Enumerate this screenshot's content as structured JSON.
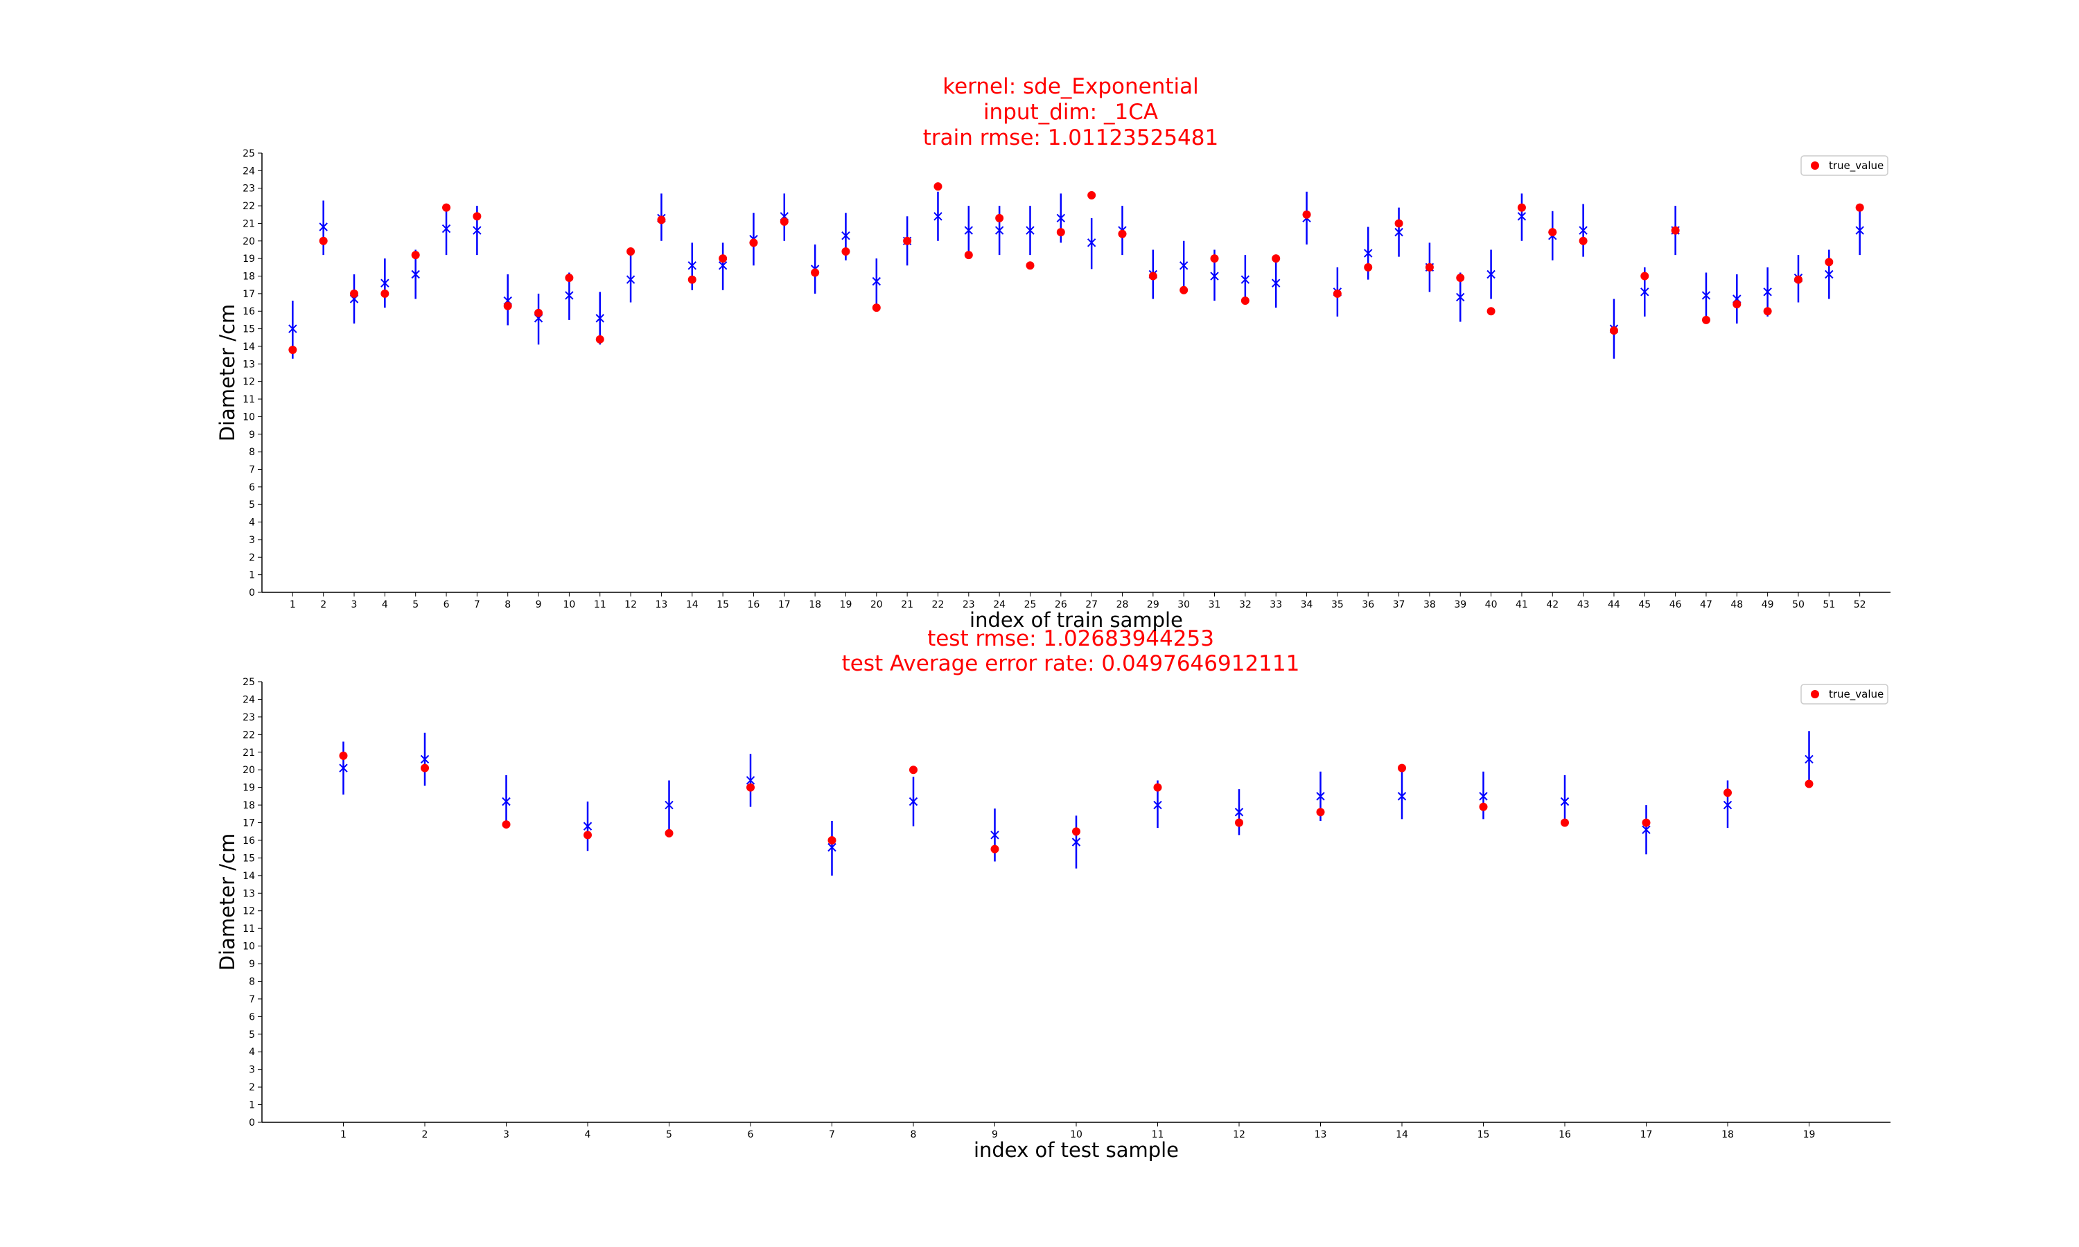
{
  "figure": {
    "title_lines": [
      "kernel: sde_Exponential",
      "input_dim: _1CA",
      "train rmse: 1.01123525481"
    ],
    "test_title_lines": [
      "test rmse: 1.02683944253",
      "test Average error rate: 0.0497646912111"
    ]
  },
  "colors": {
    "true_value": "#ff0000",
    "prediction": "#0000ff",
    "title": "#ff0000"
  },
  "chart_data": [
    {
      "type": "scatter",
      "name": "train",
      "xlabel": "index of train sample",
      "ylabel": "Diameter /cm",
      "ylim": [
        0,
        25
      ],
      "yticks": [
        0,
        1,
        2,
        3,
        4,
        5,
        6,
        7,
        8,
        9,
        10,
        11,
        12,
        13,
        14,
        15,
        16,
        17,
        18,
        19,
        20,
        21,
        22,
        23,
        24,
        25
      ],
      "x": [
        1,
        2,
        3,
        4,
        5,
        6,
        7,
        8,
        9,
        10,
        11,
        12,
        13,
        14,
        15,
        16,
        17,
        18,
        19,
        20,
        21,
        22,
        23,
        24,
        25,
        26,
        27,
        28,
        29,
        30,
        31,
        32,
        33,
        34,
        35,
        36,
        37,
        38,
        39,
        40,
        41,
        42,
        43,
        44,
        45,
        46,
        47,
        48,
        49,
        50,
        51,
        52
      ],
      "xtick_labels": [
        "1",
        "2",
        "3",
        "4",
        "5",
        "6",
        "7",
        "8",
        "9",
        "10",
        "11",
        "12",
        "13",
        "14",
        "15",
        "16",
        "17",
        "18",
        "19",
        "20",
        "21",
        "22",
        "23",
        "24",
        "25",
        "26",
        "27",
        "28",
        "29",
        "30",
        "31",
        "32",
        "33",
        "34",
        "35",
        "36",
        "37",
        "38",
        "39",
        "40",
        "41",
        "42",
        "43",
        "44",
        "45",
        "46",
        "47",
        "48",
        "49",
        "50",
        "51",
        "52"
      ],
      "true_value": [
        13.8,
        20.0,
        17.0,
        17.0,
        19.2,
        21.9,
        21.4,
        16.3,
        15.9,
        17.9,
        14.4,
        19.4,
        21.2,
        17.8,
        19.0,
        19.9,
        21.1,
        18.2,
        19.4,
        16.2,
        20.0,
        23.1,
        19.2,
        21.3,
        18.6,
        20.5,
        22.6,
        20.4,
        18.0,
        17.2,
        19.0,
        16.6,
        19.0,
        21.5,
        17.0,
        18.5,
        21.0,
        18.5,
        17.9,
        16.0,
        21.9,
        20.5,
        20.0,
        14.9,
        18.0,
        20.6,
        15.5,
        16.4,
        16.0,
        17.8,
        18.8,
        21.9
      ],
      "prediction": [
        15.0,
        20.8,
        16.7,
        17.6,
        18.1,
        20.7,
        20.6,
        16.6,
        15.6,
        16.9,
        15.6,
        17.8,
        21.3,
        18.6,
        18.6,
        20.1,
        21.4,
        18.4,
        20.3,
        17.7,
        20.0,
        21.4,
        20.6,
        20.6,
        20.6,
        21.3,
        19.9,
        20.6,
        18.1,
        18.6,
        18.0,
        17.8,
        17.6,
        21.3,
        17.1,
        19.3,
        20.5,
        18.5,
        16.8,
        18.1,
        21.4,
        20.3,
        20.6,
        15.0,
        17.1,
        20.6,
        16.9,
        16.7,
        17.1,
        17.9,
        18.1,
        20.6
      ],
      "lower": [
        13.3,
        19.2,
        15.3,
        16.2,
        16.7,
        19.2,
        19.2,
        15.2,
        14.1,
        15.5,
        14.1,
        16.5,
        20.0,
        17.2,
        17.2,
        18.6,
        20.0,
        17.0,
        18.9,
        16.3,
        18.6,
        20.0,
        19.2,
        19.2,
        19.2,
        19.9,
        18.4,
        19.2,
        16.7,
        17.2,
        16.6,
        16.4,
        16.2,
        19.8,
        15.7,
        17.8,
        19.1,
        17.1,
        15.4,
        16.7,
        20.0,
        18.9,
        19.1,
        13.3,
        15.7,
        19.2,
        15.5,
        15.3,
        15.7,
        16.5,
        16.7,
        19.2
      ],
      "upper": [
        16.6,
        22.3,
        18.1,
        19.0,
        19.5,
        22.1,
        22.0,
        18.1,
        17.0,
        18.2,
        17.1,
        19.2,
        22.7,
        19.9,
        19.9,
        21.6,
        22.7,
        19.8,
        21.6,
        19.0,
        21.4,
        22.8,
        22.0,
        22.0,
        22.0,
        22.7,
        21.3,
        22.0,
        19.5,
        20.0,
        19.5,
        19.2,
        19.0,
        22.8,
        18.5,
        20.8,
        21.9,
        19.9,
        18.2,
        19.5,
        22.7,
        21.7,
        22.1,
        16.7,
        18.5,
        22.0,
        18.2,
        18.1,
        18.5,
        19.2,
        19.5,
        22.0
      ],
      "legend": [
        "true_value"
      ],
      "legend_position": "top-right",
      "grid": false
    },
    {
      "type": "scatter",
      "name": "test",
      "xlabel": "index of test sample",
      "ylabel": "Diameter /cm",
      "ylim": [
        0,
        25
      ],
      "yticks": [
        0,
        1,
        2,
        3,
        4,
        5,
        6,
        7,
        8,
        9,
        10,
        11,
        12,
        13,
        14,
        15,
        16,
        17,
        18,
        19,
        20,
        21,
        22,
        23,
        24,
        25
      ],
      "x": [
        1,
        2,
        3,
        4,
        5,
        6,
        7,
        8,
        9,
        10,
        11,
        12,
        13,
        14,
        15,
        16,
        17,
        18,
        19
      ],
      "xtick_labels": [
        "1",
        "2",
        "3",
        "4",
        "5",
        "6",
        "7",
        "8",
        "9",
        "10",
        "11",
        "12",
        "13",
        "14",
        "15",
        "16",
        "17",
        "18",
        "19"
      ],
      "true_value": [
        20.8,
        20.1,
        16.9,
        16.3,
        16.4,
        19.0,
        16.0,
        20.0,
        15.5,
        16.5,
        19.0,
        17.0,
        17.6,
        20.1,
        17.9,
        17.0,
        17.0,
        18.7,
        19.2
      ],
      "prediction": [
        20.1,
        20.6,
        18.2,
        16.8,
        18.0,
        19.4,
        15.6,
        18.2,
        16.3,
        15.9,
        18.0,
        17.6,
        18.5,
        18.5,
        18.5,
        18.2,
        16.6,
        18.0,
        20.6
      ],
      "lower": [
        18.6,
        19.1,
        16.8,
        15.4,
        16.6,
        17.9,
        14.0,
        16.8,
        14.8,
        14.4,
        16.7,
        16.3,
        17.1,
        17.2,
        17.2,
        16.8,
        15.2,
        16.7,
        19.2
      ],
      "upper": [
        21.6,
        22.1,
        19.7,
        18.2,
        19.4,
        20.9,
        17.1,
        19.6,
        17.8,
        17.4,
        19.4,
        18.9,
        19.9,
        20.0,
        19.9,
        19.7,
        18.0,
        19.4,
        22.2
      ],
      "legend": [
        "true_value"
      ],
      "legend_position": "top-right",
      "grid": false
    }
  ]
}
